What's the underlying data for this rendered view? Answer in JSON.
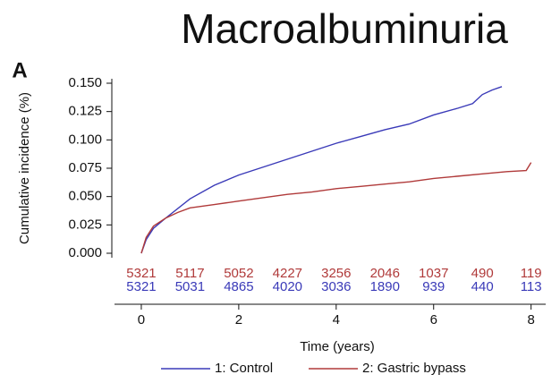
{
  "chart_data": {
    "type": "line",
    "title": "Macroalbuminuria",
    "panel_label": "A",
    "x_label": "Time (years)",
    "y_label": "Cumulative incidence (%)",
    "xlim": [
      -0.55,
      8.3
    ],
    "ylim": [
      0,
      0.15
    ],
    "xticks": [
      0,
      2,
      4,
      6,
      8
    ],
    "yticks": [
      {
        "value": 0,
        "label": "0.000"
      },
      {
        "value": 0.025,
        "label": "0.025"
      },
      {
        "value": 0.05,
        "label": "0.050"
      },
      {
        "value": 0.075,
        "label": "0.075"
      },
      {
        "value": 0.1,
        "label": "0.100"
      },
      {
        "value": 0.125,
        "label": "0.125"
      },
      {
        "value": 0.15,
        "label": "0.150"
      }
    ],
    "series": [
      {
        "name": "1: Control",
        "color": "#3a3ab8",
        "x": [
          0,
          0.1,
          0.25,
          0.5,
          1,
          1.5,
          2,
          2.5,
          3,
          3.5,
          4,
          4.5,
          5,
          5.5,
          6,
          6.5,
          6.8,
          7,
          7.2,
          7.4
        ],
        "values": [
          0,
          0.012,
          0.022,
          0.031,
          0.048,
          0.06,
          0.069,
          0.076,
          0.083,
          0.09,
          0.097,
          0.103,
          0.109,
          0.114,
          0.122,
          0.128,
          0.132,
          0.14,
          0.144,
          0.147
        ]
      },
      {
        "name": "2: Gastric bypass",
        "color": "#b03a3a",
        "x": [
          0,
          0.1,
          0.25,
          0.5,
          0.75,
          1,
          1.5,
          2,
          2.5,
          3,
          3.5,
          4,
          4.5,
          5,
          5.5,
          6,
          6.5,
          7,
          7.5,
          7.9,
          8
        ],
        "values": [
          0,
          0.014,
          0.024,
          0.031,
          0.036,
          0.04,
          0.043,
          0.046,
          0.049,
          0.052,
          0.054,
          0.057,
          0.059,
          0.061,
          0.063,
          0.066,
          0.068,
          0.07,
          0.072,
          0.073,
          0.08
        ]
      }
    ],
    "at_risk": {
      "x": [
        0,
        1,
        2,
        3,
        4,
        5,
        6,
        7,
        8
      ],
      "rows": [
        {
          "color": "#b03a3a",
          "values": [
            5321,
            5117,
            5052,
            4227,
            3256,
            2046,
            1037,
            490,
            119
          ]
        },
        {
          "color": "#3a3ab8",
          "values": [
            5321,
            5031,
            4865,
            4020,
            3036,
            1890,
            939,
            440,
            113
          ]
        }
      ]
    }
  }
}
